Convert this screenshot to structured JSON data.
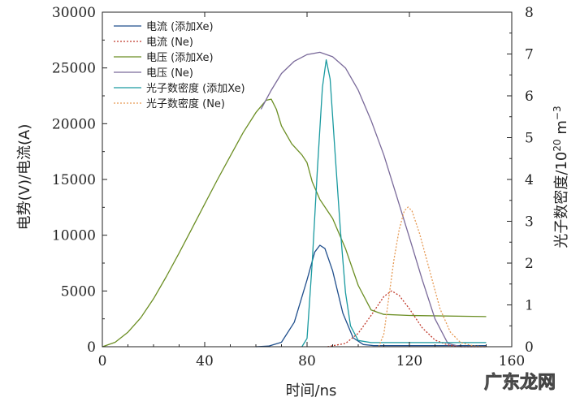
{
  "chart_data": {
    "type": "line",
    "xlabel": "时间/ns",
    "ylabel_left": "电势(V)/电流(A)",
    "ylabel_right_prefix": "光子数密度/10",
    "ylabel_right_sup1": "20",
    "ylabel_right_mid": " m",
    "ylabel_right_sup2": "−3",
    "xlim": [
      0,
      160
    ],
    "ylim_left": [
      0,
      30000
    ],
    "ylim_right": [
      0,
      8
    ],
    "x_ticks": [
      "0",
      "40",
      "80",
      "120",
      "160"
    ],
    "y_left_ticks": [
      "0",
      "5000",
      "10000",
      "15000",
      "20000",
      "25000",
      "30000"
    ],
    "y_right_ticks": [
      "0",
      "1",
      "2",
      "3",
      "4",
      "5",
      "6",
      "7",
      "8"
    ],
    "legend_position": "top-left",
    "series": [
      {
        "name": "电流 (添加Xe)",
        "color": "#1f4e8c",
        "axis": "left",
        "dash": "solid",
        "points": [
          [
            60,
            0
          ],
          [
            65,
            60
          ],
          [
            70,
            400
          ],
          [
            75,
            2200
          ],
          [
            80,
            6000
          ],
          [
            83,
            8500
          ],
          [
            85,
            9100
          ],
          [
            87,
            8800
          ],
          [
            90,
            6800
          ],
          [
            94,
            3000
          ],
          [
            98,
            800
          ],
          [
            102,
            200
          ],
          [
            106,
            100
          ],
          [
            120,
            100
          ],
          [
            150,
            100
          ]
        ]
      },
      {
        "name": "电流 (Ne)",
        "color": "#c0392b",
        "axis": "left",
        "dash": "dotted",
        "points": [
          [
            88,
            0
          ],
          [
            95,
            300
          ],
          [
            100,
            1200
          ],
          [
            105,
            2800
          ],
          [
            110,
            4500
          ],
          [
            113,
            5000
          ],
          [
            116,
            4600
          ],
          [
            120,
            3400
          ],
          [
            125,
            1700
          ],
          [
            130,
            600
          ],
          [
            135,
            150
          ],
          [
            140,
            0
          ],
          [
            150,
            0
          ]
        ]
      },
      {
        "name": "电压 (添加Xe)",
        "color": "#6b8e23",
        "axis": "left",
        "dash": "solid",
        "points": [
          [
            0,
            0
          ],
          [
            5,
            400
          ],
          [
            10,
            1300
          ],
          [
            15,
            2600
          ],
          [
            20,
            4300
          ],
          [
            25,
            6300
          ],
          [
            30,
            8400
          ],
          [
            35,
            10600
          ],
          [
            40,
            12800
          ],
          [
            45,
            15000
          ],
          [
            50,
            17100
          ],
          [
            55,
            19200
          ],
          [
            60,
            21000
          ],
          [
            64,
            22100
          ],
          [
            66,
            22200
          ],
          [
            68,
            21300
          ],
          [
            70,
            19800
          ],
          [
            74,
            18200
          ],
          [
            78,
            17200
          ],
          [
            80,
            16500
          ],
          [
            82,
            14800
          ],
          [
            85,
            13200
          ],
          [
            90,
            11500
          ],
          [
            95,
            8800
          ],
          [
            100,
            5500
          ],
          [
            105,
            3300
          ],
          [
            110,
            2900
          ],
          [
            120,
            2800
          ],
          [
            150,
            2700
          ]
        ]
      },
      {
        "name": "电压 (Ne)",
        "color": "#7a6a9a",
        "axis": "left",
        "dash": "solid",
        "points": [
          [
            62,
            21300
          ],
          [
            66,
            23000
          ],
          [
            70,
            24500
          ],
          [
            75,
            25600
          ],
          [
            80,
            26200
          ],
          [
            85,
            26400
          ],
          [
            90,
            26000
          ],
          [
            95,
            25000
          ],
          [
            100,
            23000
          ],
          [
            105,
            20300
          ],
          [
            110,
            17200
          ],
          [
            115,
            13500
          ],
          [
            120,
            9800
          ],
          [
            125,
            6000
          ],
          [
            130,
            2500
          ],
          [
            135,
            300
          ],
          [
            140,
            0
          ],
          [
            150,
            0
          ]
        ]
      },
      {
        "name": "光子数密度 (添加Xe)",
        "color": "#1a9aa0",
        "axis": "right",
        "dash": "solid",
        "points": [
          [
            78,
            0
          ],
          [
            80,
            0.2
          ],
          [
            82,
            2.0
          ],
          [
            84,
            4.2
          ],
          [
            86,
            6.2
          ],
          [
            87.5,
            6.86
          ],
          [
            89,
            6.4
          ],
          [
            91,
            4.6
          ],
          [
            93,
            2.8
          ],
          [
            95,
            1.3
          ],
          [
            97,
            0.5
          ],
          [
            100,
            0.15
          ],
          [
            105,
            0.1
          ],
          [
            120,
            0.1
          ],
          [
            150,
            0.1
          ]
        ]
      },
      {
        "name": "光子数密度 (Ne)",
        "color": "#e69a55",
        "axis": "right",
        "dash": "dotted",
        "points": [
          [
            108,
            0
          ],
          [
            110,
            0.3
          ],
          [
            112,
            1.2
          ],
          [
            114,
            2.1
          ],
          [
            116,
            2.8
          ],
          [
            118,
            3.25
          ],
          [
            119.5,
            3.34
          ],
          [
            121,
            3.25
          ],
          [
            124,
            2.7
          ],
          [
            128,
            1.8
          ],
          [
            132,
            0.9
          ],
          [
            136,
            0.35
          ],
          [
            140,
            0.1
          ],
          [
            145,
            0.02
          ],
          [
            150,
            0
          ]
        ]
      }
    ]
  },
  "watermark": "广东龙网"
}
